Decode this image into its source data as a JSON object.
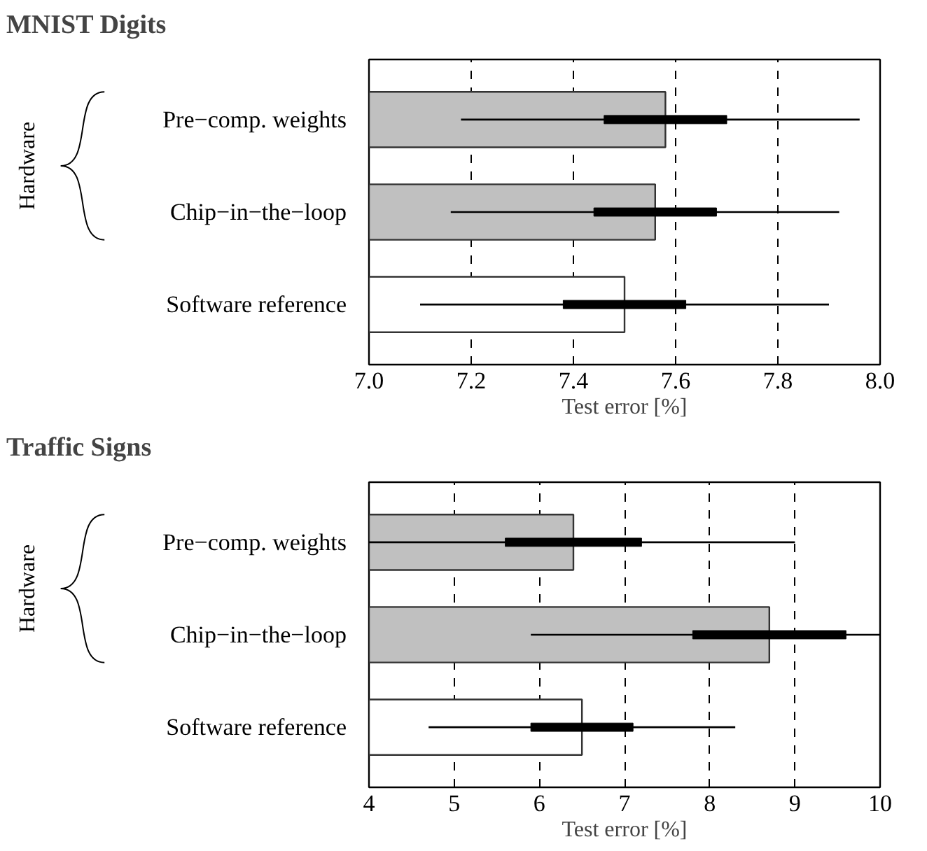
{
  "chart_data": [
    {
      "type": "bar",
      "orientation": "horizontal",
      "title": "MNIST Digits",
      "xlabel": "Test error [%]",
      "annotations": [
        "Hardware"
      ],
      "categories": [
        "Pre−comp. weights",
        "Chip−in−the−loop",
        "Software reference"
      ],
      "xlim": [
        7.0,
        8.0
      ],
      "xticks": [
        {
          "value": 7,
          "label": "7.0"
        },
        7.2,
        7.4,
        7.6,
        7.8,
        {
          "value": 8,
          "label": "8.0"
        }
      ],
      "grid": "x",
      "series": [
        {
          "type": "bar",
          "colors": [
            "#c0c0c0",
            "#c0c0c0",
            "#ffffff"
          ],
          "values": [
            7.58,
            7.56,
            7.5
          ]
        },
        {
          "type": "box",
          "color": "#000000",
          "boxes": [
            {
              "low": 7.18,
              "q1": 7.46,
              "q3": 7.7,
              "high": 7.96
            },
            {
              "low": 7.16,
              "q1": 7.44,
              "q3": 7.68,
              "high": 7.92
            },
            {
              "low": 7.1,
              "q1": 7.38,
              "q3": 7.62,
              "high": 7.9
            }
          ]
        }
      ]
    },
    {
      "type": "bar",
      "orientation": "horizontal",
      "title": "Traffic Signs",
      "xlabel": "Test error [%]",
      "annotations": [
        "Hardware"
      ],
      "categories": [
        "Pre−comp. weights",
        "Chip−in−the−loop",
        "Software reference"
      ],
      "xlim": [
        4,
        10
      ],
      "xticks": [
        4,
        5,
        6,
        7,
        8,
        9,
        10
      ],
      "grid": "x",
      "series": [
        {
          "type": "bar",
          "colors": [
            "#c0c0c0",
            "#c0c0c0",
            "#ffffff"
          ],
          "values": [
            6.4,
            8.7,
            6.5
          ]
        },
        {
          "type": "box",
          "color": "#000000",
          "boxes": [
            {
              "low": 4.0,
              "q1": 5.6,
              "q3": 7.2,
              "high": 9.0
            },
            {
              "low": 5.9,
              "q1": 7.8,
              "q3": 9.6,
              "high": 10.0
            },
            {
              "low": 4.7,
              "q1": 5.9,
              "q3": 7.1,
              "high": 8.3
            }
          ]
        }
      ]
    }
  ]
}
